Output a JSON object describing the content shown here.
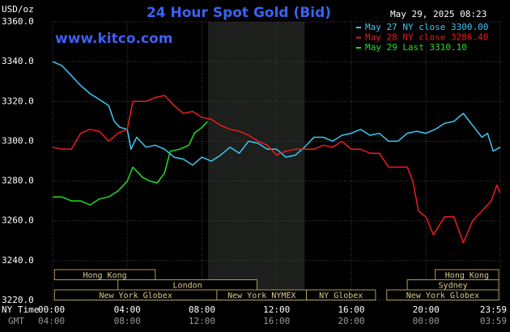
{
  "chart_data": {
    "type": "line",
    "title": "24 Hour Spot Gold (Bid)",
    "y_label": "USD/oz",
    "timestamp": "May 29, 2025 08:23",
    "watermark": "www.kitco.com",
    "x_label": "NY Time",
    "x2_label": "GMT",
    "xlim": [
      0,
      23.983
    ],
    "xticks": [
      {
        "value": 0,
        "label": "00:00"
      },
      {
        "value": 4,
        "label": "04:00"
      },
      {
        "value": 8,
        "label": "08:00"
      },
      {
        "value": 12,
        "label": "12:00"
      },
      {
        "value": 16,
        "label": "16:00"
      },
      {
        "value": 20,
        "label": "20:00"
      },
      {
        "value": 23.983,
        "label": "23:59"
      }
    ],
    "gmt_labels": [
      "04:00",
      "08:00",
      "12:00",
      "16:00",
      "20:00",
      "00:00",
      "03:59"
    ],
    "ylim": [
      3220,
      3360
    ],
    "yticks": [
      {
        "value": 3220,
        "label": "3220.0"
      },
      {
        "value": 3240,
        "label": "3240.0"
      },
      {
        "value": 3260,
        "label": "3260.0"
      },
      {
        "value": 3280,
        "label": "3280.0"
      },
      {
        "value": 3300,
        "label": "3300.0"
      },
      {
        "value": 3320,
        "label": "3320.0"
      },
      {
        "value": 3340,
        "label": "3340.0"
      },
      {
        "value": 3360,
        "label": "3360.0"
      }
    ],
    "grid": true,
    "legend": "top-right",
    "highlight_x": [
      8.33,
      13.5
    ],
    "sessions": [
      {
        "label": "Hong Kong",
        "start": 0.1,
        "end": 5.5
      },
      {
        "label": "London",
        "start": 3.5,
        "end": 10.95
      },
      {
        "label": "New York Globex",
        "start": 0.1,
        "end": 8.8
      },
      {
        "label": "New York NYMEX",
        "start": 8.8,
        "end": 13.6
      },
      {
        "label": "NY Globex",
        "start": 13.6,
        "end": 17.3
      },
      {
        "label": "Hong Kong",
        "start": 20.5,
        "end": 23.9
      },
      {
        "label": "Sydney",
        "start": 19.0,
        "end": 23.9
      },
      {
        "label": "New York Globex",
        "start": 17.9,
        "end": 23.9
      }
    ],
    "series": [
      {
        "name": "May 27 NY close 3300.00",
        "color": "#3cc8f4",
        "x": [
          0,
          0.5,
          1,
          1.5,
          2,
          2.5,
          3,
          3.3,
          3.6,
          4,
          4.2,
          4.5,
          5,
          5.5,
          6,
          6.5,
          7,
          7.5,
          8,
          8.5,
          9,
          9.5,
          10,
          10.5,
          11,
          11.5,
          12,
          12.5,
          13,
          13.5,
          14,
          14.5,
          15,
          15.5,
          16,
          16.5,
          17,
          17.5,
          18,
          18.5,
          19,
          19.5,
          20,
          20.5,
          21,
          21.5,
          22,
          22.5,
          23,
          23.3,
          23.6,
          23.98
        ],
        "values": [
          3340,
          3338,
          3333,
          3328,
          3324,
          3321,
          3318,
          3310,
          3307,
          3306,
          3296,
          3302,
          3297,
          3298,
          3296,
          3292,
          3291,
          3288,
          3292,
          3290,
          3293,
          3297,
          3294,
          3300,
          3299,
          3296,
          3296,
          3292,
          3293,
          3297,
          3302,
          3302,
          3300,
          3303,
          3304,
          3306,
          3303,
          3304,
          3300,
          3300,
          3304,
          3305,
          3304,
          3306,
          3309,
          3310,
          3314,
          3308,
          3302,
          3304,
          3295,
          3297
        ]
      },
      {
        "name": "May 28 NY close 3286.40",
        "color": "#ee1c1c",
        "x": [
          0,
          0.5,
          1,
          1.5,
          2,
          2.5,
          3,
          3.5,
          4,
          4.3,
          5,
          5.5,
          6,
          6.5,
          7,
          7.5,
          8,
          8.5,
          9,
          9.5,
          10,
          10.5,
          11,
          11.5,
          12,
          12.5,
          13,
          13.5,
          14,
          14.5,
          15,
          15.5,
          16,
          16.5,
          17,
          17.5,
          18,
          19,
          19.3,
          19.6,
          20,
          20.4,
          21,
          21.5,
          22,
          22.5,
          23,
          23.5,
          23.8,
          23.98
        ],
        "values": [
          3297,
          3296,
          3296,
          3304,
          3306,
          3305,
          3300,
          3304,
          3306,
          3320,
          3320,
          3322,
          3323,
          3318,
          3314,
          3315,
          3312,
          3311,
          3308,
          3306,
          3305,
          3303,
          3300,
          3298,
          3293,
          3295,
          3296,
          3296,
          3296,
          3298,
          3297,
          3300,
          3296,
          3296,
          3294,
          3294,
          3287,
          3287,
          3280,
          3265,
          3262,
          3253,
          3262,
          3262,
          3249,
          3260,
          3265,
          3270,
          3278,
          3274
        ]
      },
      {
        "name": "May 29 Last 3310.10",
        "color": "#22dd22",
        "x": [
          0,
          0.5,
          1,
          1.5,
          2,
          2.5,
          3,
          3.5,
          4,
          4.3,
          4.8,
          5.2,
          5.6,
          6,
          6.3,
          6.8,
          7.3,
          7.6,
          8,
          8.3
        ],
        "values": [
          3272,
          3272,
          3270,
          3270,
          3268,
          3271,
          3272,
          3275,
          3280,
          3287,
          3282,
          3280,
          3279,
          3284,
          3295,
          3296,
          3298,
          3304,
          3307,
          3310
        ]
      }
    ]
  }
}
